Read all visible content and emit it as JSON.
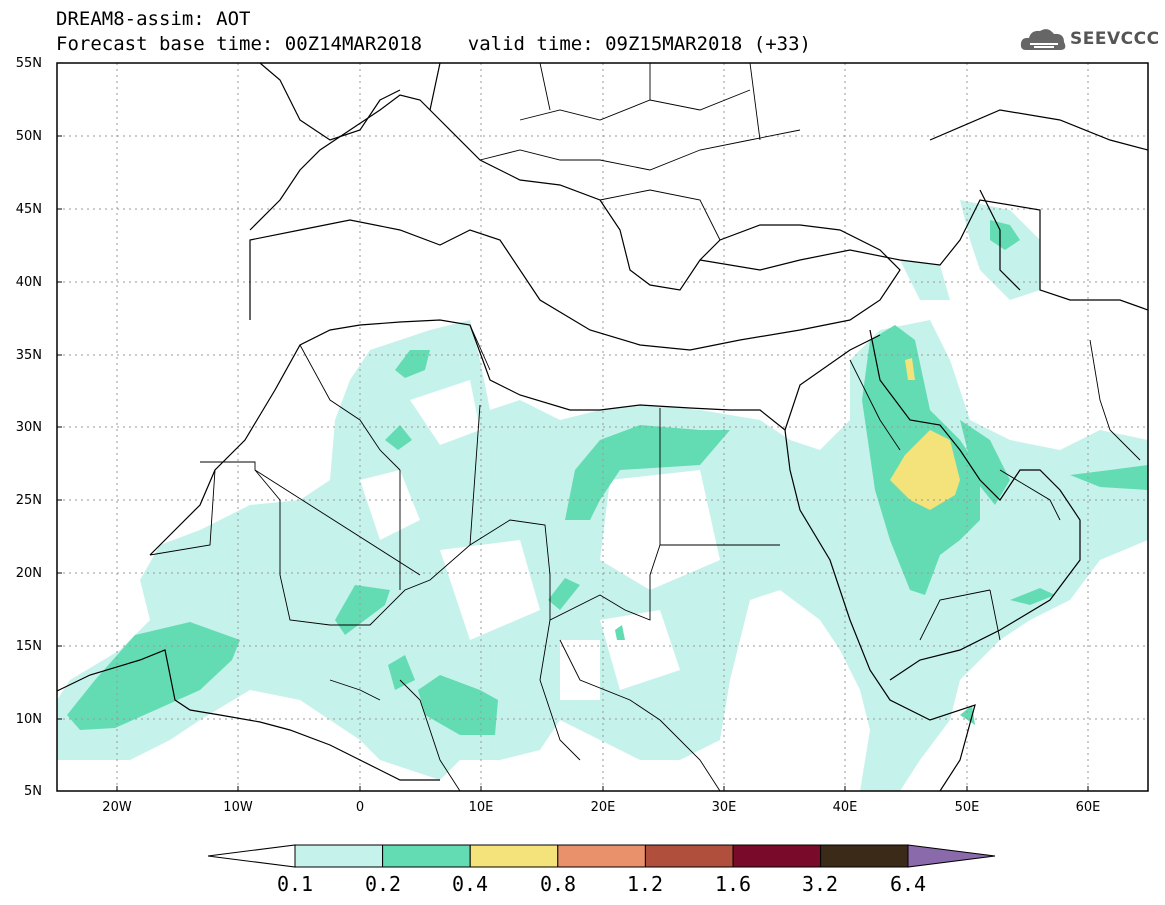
{
  "title": {
    "line1": "DREAM8-assim: AOT",
    "line2": "Forecast base time: 00Z14MAR2018    valid time: 09Z15MAR2018 (+33)"
  },
  "logo": {
    "text": "SEEVCCC",
    "icon": "cloud-logo-icon"
  },
  "map": {
    "lon_range": [
      -25,
      65
    ],
    "lat_range": [
      5,
      55
    ],
    "grid": true,
    "lat_labels": [
      "55N",
      "50N",
      "45N",
      "40N",
      "35N",
      "30N",
      "25N",
      "20N",
      "15N",
      "10N",
      "5N"
    ],
    "lon_labels": [
      "20W",
      "10W",
      "0",
      "10E",
      "20E",
      "30E",
      "40E",
      "50E",
      "60E"
    ],
    "variable": "AOT"
  },
  "colorbar": {
    "labels": [
      "0.1",
      "0.2",
      "0.4",
      "0.8",
      "1.2",
      "1.6",
      "3.2",
      "6.4"
    ],
    "colors": [
      "#c6f2ec",
      "#63dcb3",
      "#f4e27a",
      "#e8916a",
      "#b0503c",
      "#7a0a2a",
      "#3b2a18",
      "#8a6aaa"
    ]
  }
}
